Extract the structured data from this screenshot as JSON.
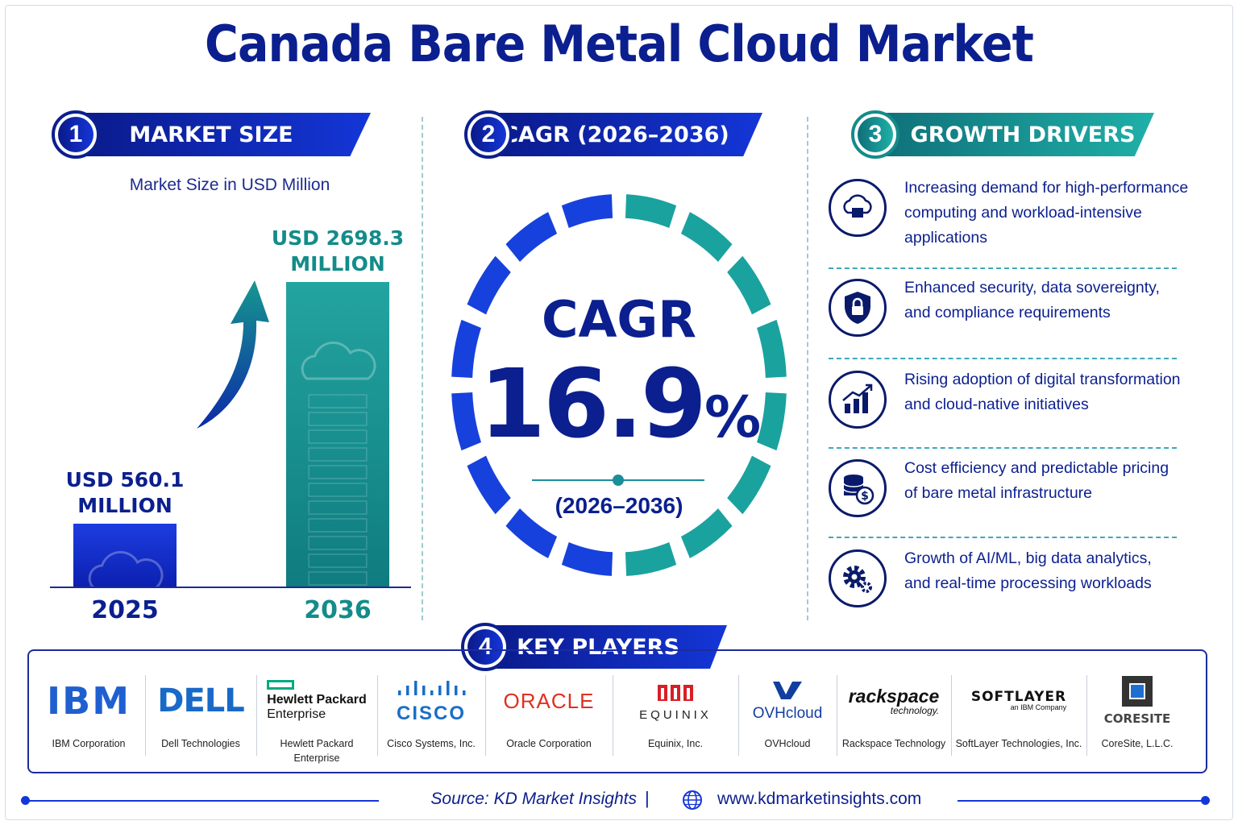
{
  "title": "Canada Bare Metal Cloud Market",
  "sections": {
    "market_size": {
      "number": "1",
      "label": "MARKET SIZE",
      "subtitle": "Market Size in USD Million"
    },
    "cagr": {
      "number": "2",
      "label": "CAGR (2026–2036)",
      "word": "CAGR",
      "value": "16.9",
      "unit": "%",
      "period": "(2026–2036)"
    },
    "growth_drivers": {
      "number": "3",
      "label": "GROWTH DRIVERS",
      "items": [
        {
          "icon": "cloud-server-icon",
          "lines": [
            "Increasing demand for high-performance",
            "computing and workload-intensive",
            "applications"
          ]
        },
        {
          "icon": "shield-lock-icon",
          "lines": [
            "Enhanced security, data sovereignty,",
            "and compliance requirements"
          ]
        },
        {
          "icon": "growth-chart-icon",
          "lines": [
            "Rising adoption of digital transformation",
            "and cloud-native initiatives"
          ]
        },
        {
          "icon": "coins-dollar-icon",
          "lines": [
            "Cost efficiency and predictable pricing",
            "of bare metal infrastructure"
          ]
        },
        {
          "icon": "gears-icon",
          "lines": [
            "Growth of AI/ML, big data analytics,",
            "and real-time processing workloads"
          ]
        }
      ]
    },
    "key_players": {
      "number": "4",
      "label": "KEY PLAYERS",
      "companies": [
        {
          "logo": "IBM",
          "name": "IBM Corporation"
        },
        {
          "logo": "DELL",
          "name": "Dell Technologies"
        },
        {
          "logo": "Hewlett Packard Enterprise",
          "logo_line1": "Hewlett Packard",
          "logo_line2": "Enterprise",
          "name_line1": "Hewlett Packard",
          "name_line2": "Enterprise"
        },
        {
          "logo": "CISCO",
          "name": "Cisco Systems, Inc."
        },
        {
          "logo": "ORACLE",
          "name": "Oracle Corporation"
        },
        {
          "logo": "EQUINIX",
          "name": "Equinix, Inc."
        },
        {
          "logo": "OVHcloud",
          "name": "OVHcloud"
        },
        {
          "logo": "rackspace",
          "logo_sub": "technology.",
          "name": "Rackspace Technology"
        },
        {
          "logo": "SOFTLAYER",
          "logo_sub": "an IBM Company",
          "name": "SoftLayer Technologies, Inc."
        },
        {
          "logo": "CORESITE",
          "name": "CoreSite, L.L.C."
        }
      ]
    }
  },
  "chart_data": {
    "type": "bar",
    "categories": [
      "2025",
      "2036"
    ],
    "values": [
      560.1,
      2698.3
    ],
    "value_labels": [
      [
        "USD 560.1",
        "MILLION"
      ],
      [
        "USD 2698.3",
        "MILLION"
      ]
    ],
    "title": "Market Size in USD Million",
    "ylabel": "",
    "colors": [
      "#1436d8",
      "#1a9a98"
    ]
  },
  "footer": {
    "source": "Source: KD Market Insights",
    "separator": "|",
    "website": "www.kdmarketinsights.com"
  },
  "colors": {
    "navy": "#0b1f8f",
    "blue": "#1436d8",
    "teal": "#1a9a98"
  }
}
